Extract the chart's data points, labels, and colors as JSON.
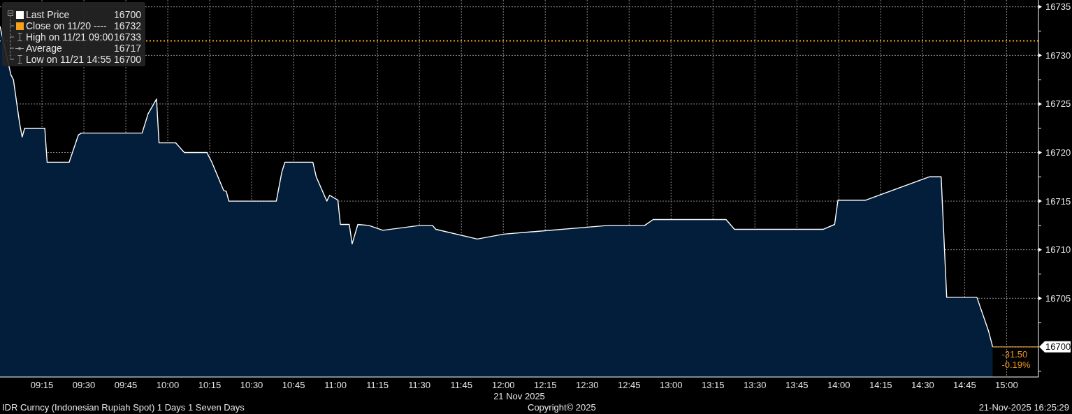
{
  "chart_data": {
    "type": "area",
    "title": "IDR Curncy (Indonesian Rupiah Spot) 1 Days 1 Seven Days",
    "xlabel": "21 Nov 2025",
    "x": [
      9,
      9.065,
      9.08,
      9.102,
      9.117,
      9.132,
      9.147,
      9.267,
      9.281,
      9.412,
      9.467,
      9.485,
      9.847,
      9.883,
      9.933,
      9.948,
      10.047,
      10.099,
      10.233,
      10.263,
      10.333,
      10.349,
      10.364,
      10.647,
      10.68,
      10.698,
      10.865,
      10.885,
      10.948,
      10.965,
      11.014,
      11.029,
      11.082,
      11.099,
      11.133,
      11.198,
      11.282,
      11.504,
      11.578,
      11.598,
      11.845,
      12.003,
      12.628,
      12.843,
      12.893,
      13.328,
      13.378,
      13.908,
      13.975,
      13.995,
      14.161,
      14.539,
      14.61,
      14.643,
      14.823,
      14.893,
      14.917
    ],
    "series": [
      {
        "name": "Last Price",
        "color": "#ffffff",
        "values": [
          16733,
          16728,
          16727.5,
          16724.8,
          16723,
          16721.6,
          16722.5,
          16722.5,
          16719,
          16719,
          16721.8,
          16722,
          16722,
          16724,
          16725.5,
          16721,
          16721,
          16720,
          16720,
          16719,
          16716.1,
          16716,
          16715,
          16715,
          16718,
          16719,
          16719,
          16717.5,
          16715,
          16715.6,
          16715.1,
          16712.6,
          16712.6,
          16710.6,
          16712.6,
          16712.5,
          16712,
          16712.5,
          16712.5,
          16712.1,
          16711.1,
          16711.6,
          16712.5,
          16712.5,
          16713.1,
          16713.1,
          16712.1,
          16712.1,
          16712.6,
          16715.1,
          16715.1,
          16717.5,
          16717.5,
          16705.1,
          16705.1,
          16701.6,
          16700
        ]
      }
    ],
    "xlim": [
      9,
      15.19
    ],
    "xticks": [
      {
        "value": 9.25,
        "label": "09:15"
      },
      {
        "value": 9.5,
        "label": "09:30"
      },
      {
        "value": 9.75,
        "label": "09:45"
      },
      {
        "value": 10,
        "label": "10:00"
      },
      {
        "value": 10.25,
        "label": "10:15"
      },
      {
        "value": 10.5,
        "label": "10:30"
      },
      {
        "value": 10.75,
        "label": "10:45"
      },
      {
        "value": 11,
        "label": "11:00"
      },
      {
        "value": 11.25,
        "label": "11:15"
      },
      {
        "value": 11.5,
        "label": "11:30"
      },
      {
        "value": 11.75,
        "label": "11:45"
      },
      {
        "value": 12,
        "label": "12:00"
      },
      {
        "value": 12.25,
        "label": "12:15"
      },
      {
        "value": 12.5,
        "label": "12:30"
      },
      {
        "value": 12.75,
        "label": "12:45"
      },
      {
        "value": 13,
        "label": "13:00"
      },
      {
        "value": 13.25,
        "label": "13:15"
      },
      {
        "value": 13.5,
        "label": "13:30"
      },
      {
        "value": 13.75,
        "label": "13:45"
      },
      {
        "value": 14,
        "label": "14:00"
      },
      {
        "value": 14.25,
        "label": "14:15"
      },
      {
        "value": 14.5,
        "label": "14:30"
      },
      {
        "value": 14.75,
        "label": "14:45"
      },
      {
        "value": 15,
        "label": "15:00"
      }
    ],
    "ylim": [
      16696.9,
      16735.7
    ],
    "yticks": [
      {
        "value": 16697.5,
        "label": null
      },
      16700,
      {
        "value": 16702.5,
        "label": null
      },
      16705,
      {
        "value": 16707.5,
        "label": null
      },
      16710,
      {
        "value": 16712.5,
        "label": null
      },
      16715,
      {
        "value": 16717.5,
        "label": null
      },
      16720,
      {
        "value": 16722.5,
        "label": null
      },
      16725,
      {
        "value": 16727.5,
        "label": null
      },
      16730,
      {
        "value": 16732.5,
        "label": null
      },
      16735
    ],
    "ref_lines": [
      {
        "axis": "y",
        "value": 16731.5,
        "label": "Close on 11/20 ----",
        "color": "#f5a01e",
        "line_style": "dotted"
      }
    ],
    "annotations": [
      "16700",
      "16732",
      "High on 11/21 09:00",
      "16733",
      "Average",
      "16717",
      "Low on 11/21 14:55",
      "16700",
      "-31.50",
      "-0.19%",
      "Copyright© 2025",
      "21-Nov-2025 16:25:29"
    ],
    "grid": true,
    "legend": "top left"
  }
}
